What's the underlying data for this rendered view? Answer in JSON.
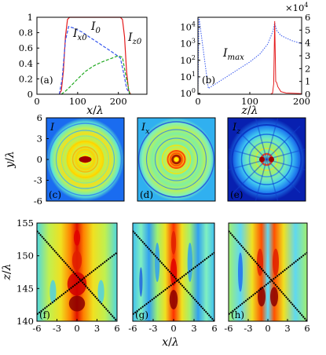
{
  "chart_data": [
    {
      "id": "a",
      "type": "line",
      "panel_label": "(a)",
      "xlabel": "x/λ",
      "xlim": [
        0,
        270
      ],
      "ylim": [
        0,
        1
      ],
      "x_ticks": [
        0,
        100,
        200
      ],
      "y_ticks": [
        0,
        0.2,
        0.4,
        0.6,
        0.8,
        1
      ],
      "annotations": [
        "I_x0",
        "I_0",
        "I_z0"
      ],
      "series": [
        {
          "name": "I_0",
          "color": "#e41a1c",
          "style": "solid",
          "x": [
            55,
            60,
            65,
            70,
            75,
            80,
            205,
            210,
            215,
            220,
            225,
            230
          ],
          "y": [
            0.0,
            0.05,
            0.3,
            0.75,
            0.97,
            1.0,
            1.0,
            0.97,
            0.75,
            0.3,
            0.05,
            0.0
          ]
        },
        {
          "name": "I_x0",
          "color": "#3355ee",
          "style": "dashed",
          "x": [
            55,
            62,
            70,
            78,
            90,
            110,
            130,
            150,
            170,
            190,
            205,
            212,
            220,
            228
          ],
          "y": [
            0.0,
            0.2,
            0.7,
            0.88,
            0.86,
            0.81,
            0.74,
            0.67,
            0.6,
            0.53,
            0.47,
            0.3,
            0.08,
            0.0
          ]
        },
        {
          "name": "I_z0",
          "color": "#22aa22",
          "style": "dashed",
          "x": [
            60,
            70,
            80,
            100,
            120,
            140,
            160,
            180,
            200,
            210,
            218,
            228
          ],
          "y": [
            0.0,
            0.04,
            0.09,
            0.2,
            0.3,
            0.37,
            0.42,
            0.46,
            0.5,
            0.48,
            0.25,
            0.0
          ]
        }
      ]
    },
    {
      "id": "b",
      "type": "line",
      "panel_label": "(b)",
      "xlabel": "z/λ",
      "annotations": [
        "I_max"
      ],
      "xlim": [
        0,
        200
      ],
      "x_ticks": [
        0,
        100,
        200
      ],
      "y_left_log_ticks": [
        "10^0",
        "10^1",
        "10^2",
        "10^3",
        "10^4"
      ],
      "y_left_exp": [
        0,
        1,
        2,
        3,
        4
      ],
      "y_right_ticks": [
        0,
        1,
        2,
        3,
        4,
        5,
        6
      ],
      "y_right_multiplier": "×10^4",
      "series": [
        {
          "name": "I_max (log)",
          "color": "#3355ee",
          "style": "dotted",
          "x": [
            0,
            2,
            20,
            40,
            60,
            80,
            100,
            120,
            135,
            145,
            148,
            152,
            160,
            180,
            200
          ],
          "log10_y": [
            0.0,
            4.6,
            0.3,
            0.7,
            1.1,
            1.5,
            1.9,
            2.4,
            3.0,
            3.8,
            4.25,
            3.8,
            3.5,
            3.2,
            3.0
          ]
        },
        {
          "name": "I_max (linear)",
          "color": "#e41a1c",
          "style": "solid",
          "x": [
            0,
            140,
            144,
            146,
            147,
            148,
            149,
            150,
            152,
            154,
            157,
            160,
            170,
            200
          ],
          "y": [
            0,
            0,
            0.1,
            0.8,
            3.0,
            5.7,
            3.5,
            1.0,
            0.9,
            0.6,
            0.4,
            0.2,
            0.1,
            0.05
          ]
        }
      ]
    },
    {
      "id": "c",
      "type": "heatmap",
      "panel_label": "(c)",
      "field": "I",
      "xlim": [
        -6,
        6
      ],
      "ylim": [
        -6,
        6
      ],
      "ylabel": "y/λ",
      "y_ticks": [
        6,
        3,
        0,
        -3,
        -6
      ]
    },
    {
      "id": "d",
      "type": "heatmap",
      "panel_label": "(d)",
      "field": "I_x",
      "xlim": [
        -6,
        6
      ],
      "ylim": [
        -6,
        6
      ]
    },
    {
      "id": "e",
      "type": "heatmap",
      "panel_label": "(e)",
      "field": "I_z",
      "xlim": [
        -6,
        6
      ],
      "ylim": [
        -6,
        6
      ]
    },
    {
      "id": "f",
      "type": "heatmap",
      "panel_label": "(f)",
      "xlim": [
        -6,
        6
      ],
      "ylim": [
        140,
        155
      ],
      "ylabel": "z/λ",
      "y_ticks": [
        155,
        150,
        145,
        140
      ],
      "x_ticks": [
        -6,
        -3,
        0,
        3,
        6
      ]
    },
    {
      "id": "g",
      "type": "heatmap",
      "panel_label": "(g)",
      "xlim": [
        -6,
        6
      ],
      "ylim": [
        140,
        155
      ],
      "x_ticks": [
        -6,
        -3,
        0,
        3,
        6
      ]
    },
    {
      "id": "h",
      "type": "heatmap",
      "panel_label": "(h)",
      "xlim": [
        -6,
        6
      ],
      "ylim": [
        140,
        155
      ],
      "x_ticks": [
        -6,
        -3,
        0,
        3,
        6
      ],
      "xlabel": "x/λ"
    }
  ]
}
